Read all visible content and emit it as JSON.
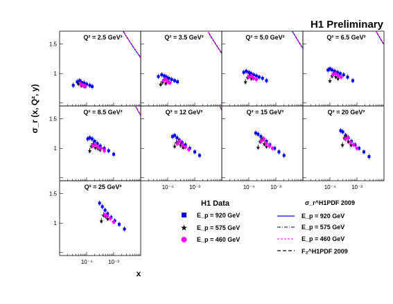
{
  "header": {
    "title": "H1 Preliminary"
  },
  "axes": {
    "ylabel": "σ_r (x, Q², y)",
    "xlabel": "x",
    "y_ticks": [
      "1.5",
      "1"
    ],
    "x_ticks": [
      "10⁻⁴",
      "10⁻³"
    ],
    "ylim": [
      0.45,
      1.72
    ],
    "xlog_range": [
      -5,
      -2
    ],
    "grid": false
  },
  "legend": {
    "data_title": "H1 Data",
    "theory_title": "σ_r^H1PDF 2009",
    "entries": [
      {
        "label": "E_p = 920 GeV",
        "marker": "square",
        "color": "#0000ff"
      },
      {
        "label": "E_p = 575 GeV",
        "marker": "star",
        "color": "#000000"
      },
      {
        "label": "E_p = 460 GeV",
        "marker": "circle",
        "color": "#ff00ff"
      }
    ],
    "curves": [
      {
        "label": "E_p = 920 GeV",
        "style": "solid",
        "color": "#0000ff"
      },
      {
        "label": "E_p = 575 GeV",
        "style": "dashdot",
        "color": "#000000"
      },
      {
        "label": "E_p = 460 GeV",
        "style": "dotted",
        "color": "#ff00ff"
      },
      {
        "label": "F₂^H1PDF 2009",
        "style": "dashed",
        "color": "#000000"
      }
    ]
  },
  "chart_data": {
    "type": "scatter",
    "panels": [
      {
        "label": "Q² = 2.5 GeV²",
        "q2": 2.5,
        "series": [
          {
            "name": "E_p = 920 GeV",
            "points": [
              [
                3.2e-05,
                0.8
              ],
              [
                4.5e-05,
                0.86
              ],
              [
                5.5e-05,
                0.88
              ],
              [
                6.5e-05,
                0.85
              ],
              [
                8e-05,
                0.84
              ],
              [
                0.0001,
                0.82
              ],
              [
                0.00013,
                0.8
              ],
              [
                0.00016,
                0.78
              ]
            ]
          },
          {
            "name": "E_p = 575 GeV",
            "points": [
              [
                5e-05,
                0.83
              ],
              [
                6.3e-05,
                0.8
              ],
              [
                8e-05,
                0.79
              ]
            ]
          },
          {
            "name": "E_p = 460 GeV",
            "points": [
              [
                6e-05,
                0.82
              ],
              [
                7.5e-05,
                0.8
              ],
              [
                9e-05,
                0.78
              ]
            ]
          }
        ]
      },
      {
        "label": "Q² = 3.5 GeV²",
        "q2": 3.5,
        "series": [
          {
            "name": "E_p = 920 GeV",
            "points": [
              [
                4.5e-05,
                0.95
              ],
              [
                6e-05,
                0.98
              ],
              [
                7.5e-05,
                0.96
              ],
              [
                9e-05,
                0.94
              ],
              [
                0.00011,
                0.92
              ],
              [
                0.00014,
                0.9
              ],
              [
                0.00018,
                0.88
              ],
              [
                0.00023,
                0.86
              ]
            ]
          },
          {
            "name": "E_p = 575 GeV",
            "points": [
              [
                5.5e-05,
                0.82
              ],
              [
                6.5e-05,
                0.86
              ],
              [
                7.5e-05,
                0.9
              ],
              [
                8.5e-05,
                0.84
              ],
              [
                0.0001,
                0.88
              ]
            ]
          },
          {
            "name": "E_p = 460 GeV",
            "points": [
              [
                7e-05,
                0.88
              ],
              [
                8.5e-05,
                0.9
              ],
              [
                0.0001,
                0.86
              ],
              [
                0.00012,
                0.84
              ]
            ]
          }
        ]
      },
      {
        "label": "Q² = 5.0 GeV²",
        "q2": 5.0,
        "series": [
          {
            "name": "E_p = 920 GeV",
            "points": [
              [
                6.5e-05,
                1.02
              ],
              [
                8e-05,
                1.04
              ],
              [
                0.0001,
                1.02
              ],
              [
                0.00012,
                1.0
              ],
              [
                0.00015,
                0.98
              ],
              [
                0.00019,
                0.96
              ],
              [
                0.00024,
                0.94
              ],
              [
                0.00032,
                0.92
              ],
              [
                0.00045,
                0.88
              ]
            ]
          },
          {
            "name": "E_p = 575 GeV",
            "points": [
              [
                7.5e-05,
                0.86
              ],
              [
                9e-05,
                0.94
              ],
              [
                0.000105,
                0.96
              ],
              [
                0.000125,
                0.92
              ]
            ]
          },
          {
            "name": "E_p = 460 GeV",
            "points": [
              [
                0.0001,
                0.94
              ],
              [
                0.000125,
                0.96
              ],
              [
                0.00015,
                0.92
              ],
              [
                0.00019,
                0.9
              ]
            ]
          }
        ]
      },
      {
        "label": "Q² = 6.5 GeV²",
        "q2": 6.5,
        "series": [
          {
            "name": "E_p = 920 GeV",
            "points": [
              [
                8.5e-05,
                1.06
              ],
              [
                0.0001,
                1.08
              ],
              [
                0.00012,
                1.06
              ],
              [
                0.00015,
                1.04
              ],
              [
                0.00019,
                1.02
              ],
              [
                0.00024,
                1.0
              ],
              [
                0.00032,
                0.98
              ],
              [
                0.00045,
                0.94
              ],
              [
                0.0007,
                0.88
              ]
            ]
          },
          {
            "name": "E_p = 575 GeV",
            "points": [
              [
                0.0001,
                0.88
              ],
              [
                0.00012,
                0.96
              ],
              [
                0.00014,
                1.0
              ],
              [
                0.000165,
                0.95
              ],
              [
                0.0002,
                0.92
              ]
            ]
          },
          {
            "name": "E_p = 460 GeV",
            "points": [
              [
                0.00013,
                0.98
              ],
              [
                0.00016,
                1.0
              ],
              [
                0.0002,
                0.96
              ],
              [
                0.00026,
                0.94
              ]
            ]
          }
        ]
      },
      {
        "label": "Q² = 8.5 GeV²",
        "q2": 8.5,
        "series": [
          {
            "name": "E_p = 920 GeV",
            "points": [
              [
                0.00011,
                1.16
              ],
              [
                0.00013,
                1.18
              ],
              [
                0.00016,
                1.16
              ],
              [
                0.0002,
                1.12
              ],
              [
                0.00025,
                1.08
              ],
              [
                0.00032,
                1.04
              ],
              [
                0.00045,
                1.0
              ],
              [
                0.00065,
                0.96
              ],
              [
                0.001,
                0.9
              ]
            ]
          },
          {
            "name": "E_p = 575 GeV",
            "points": [
              [
                0.00013,
                0.96
              ],
              [
                0.00015,
                1.04
              ],
              [
                0.000175,
                1.08
              ],
              [
                0.00021,
                1.02
              ],
              [
                0.00026,
                1.0
              ],
              [
                0.00032,
                0.98
              ]
            ]
          },
          {
            "name": "E_p = 460 GeV",
            "points": [
              [
                0.00017,
                1.04
              ],
              [
                0.00021,
                1.06
              ],
              [
                0.00026,
                1.02
              ],
              [
                0.00034,
                1.0
              ],
              [
                0.00045,
                0.96
              ]
            ]
          }
        ]
      },
      {
        "label": "Q² = 12 GeV²",
        "q2": 12,
        "series": [
          {
            "name": "E_p = 920 GeV",
            "points": [
              [
                0.00015,
                1.2
              ],
              [
                0.00018,
                1.22
              ],
              [
                0.00022,
                1.18
              ],
              [
                0.00027,
                1.14
              ],
              [
                0.00034,
                1.1
              ],
              [
                0.00045,
                1.06
              ],
              [
                0.00065,
                1.0
              ],
              [
                0.001,
                0.94
              ],
              [
                0.0015,
                0.88
              ]
            ]
          },
          {
            "name": "E_p = 575 GeV",
            "points": [
              [
                0.00018,
                1.04
              ],
              [
                0.00021,
                1.1
              ],
              [
                0.00025,
                1.12
              ],
              [
                0.0003,
                1.06
              ],
              [
                0.00037,
                1.02
              ]
            ]
          },
          {
            "name": "E_p = 460 GeV",
            "points": [
              [
                0.00023,
                1.08
              ],
              [
                0.00028,
                1.12
              ],
              [
                0.00035,
                1.06
              ],
              [
                0.00045,
                1.02
              ],
              [
                0.0006,
                0.98
              ]
            ]
          }
        ]
      },
      {
        "label": "Q² = 15 GeV²",
        "q2": 15,
        "series": [
          {
            "name": "E_p = 920 GeV",
            "points": [
              [
                0.00018,
                1.26
              ],
              [
                0.00022,
                1.24
              ],
              [
                0.00028,
                1.2
              ],
              [
                0.00035,
                1.16
              ],
              [
                0.00045,
                1.12
              ],
              [
                0.0006,
                1.06
              ],
              [
                0.0009,
                1.0
              ],
              [
                0.0013,
                0.94
              ],
              [
                0.002,
                0.88
              ]
            ]
          },
          {
            "name": "E_p = 575 GeV",
            "points": [
              [
                0.00022,
                1.02
              ],
              [
                0.00026,
                1.12
              ],
              [
                0.00031,
                1.16
              ],
              [
                0.00037,
                1.08
              ],
              [
                0.00045,
                1.04
              ]
            ]
          },
          {
            "name": "E_p = 460 GeV",
            "points": [
              [
                0.00029,
                1.12
              ],
              [
                0.00036,
                1.16
              ],
              [
                0.00045,
                1.08
              ],
              [
                0.00058,
                1.04
              ],
              [
                0.00075,
                1.0
              ]
            ]
          }
        ]
      },
      {
        "label": "Q² = 20 GeV²",
        "q2": 20,
        "series": [
          {
            "name": "E_p = 920 GeV",
            "points": [
              [
                0.00025,
                1.3
              ],
              [
                0.0003,
                1.28
              ],
              [
                0.00038,
                1.22
              ],
              [
                0.00048,
                1.18
              ],
              [
                0.00062,
                1.12
              ],
              [
                0.00085,
                1.06
              ],
              [
                0.0012,
                1.0
              ],
              [
                0.0018,
                0.94
              ],
              [
                0.0028,
                0.86
              ]
            ]
          },
          {
            "name": "E_p = 575 GeV",
            "points": [
              [
                0.00029,
                1.06
              ],
              [
                0.00034,
                1.18
              ],
              [
                0.0004,
                1.2
              ],
              [
                0.00048,
                1.12
              ],
              [
                0.0006,
                1.06
              ]
            ]
          },
          {
            "name": "E_p = 460 GeV",
            "points": [
              [
                0.00038,
                1.16
              ],
              [
                0.00046,
                1.18
              ],
              [
                0.00058,
                1.1
              ],
              [
                0.00075,
                1.06
              ],
              [
                0.001,
                1.0
              ]
            ]
          }
        ]
      },
      {
        "label": "Q² = 25 GeV²",
        "q2": 25,
        "series": [
          {
            "name": "E_p = 920 GeV",
            "points": [
              [
                0.0003,
                1.34
              ],
              [
                0.00038,
                1.28
              ],
              [
                0.00048,
                1.22
              ],
              [
                0.0006,
                1.16
              ],
              [
                0.0008,
                1.1
              ],
              [
                0.0011,
                1.04
              ],
              [
                0.0016,
                0.98
              ],
              [
                0.0025,
                0.9
              ]
            ]
          },
          {
            "name": "E_p = 575 GeV",
            "points": [
              [
                0.00035,
                1.04
              ],
              [
                0.00042,
                1.14
              ],
              [
                0.0005,
                1.12
              ],
              [
                0.0006,
                1.08
              ]
            ]
          },
          {
            "name": "E_p = 460 GeV",
            "points": [
              [
                0.00048,
                1.14
              ],
              [
                0.00058,
                1.12
              ],
              [
                0.00075,
                1.08
              ],
              [
                0.001,
                1.02
              ]
            ]
          }
        ]
      }
    ]
  }
}
